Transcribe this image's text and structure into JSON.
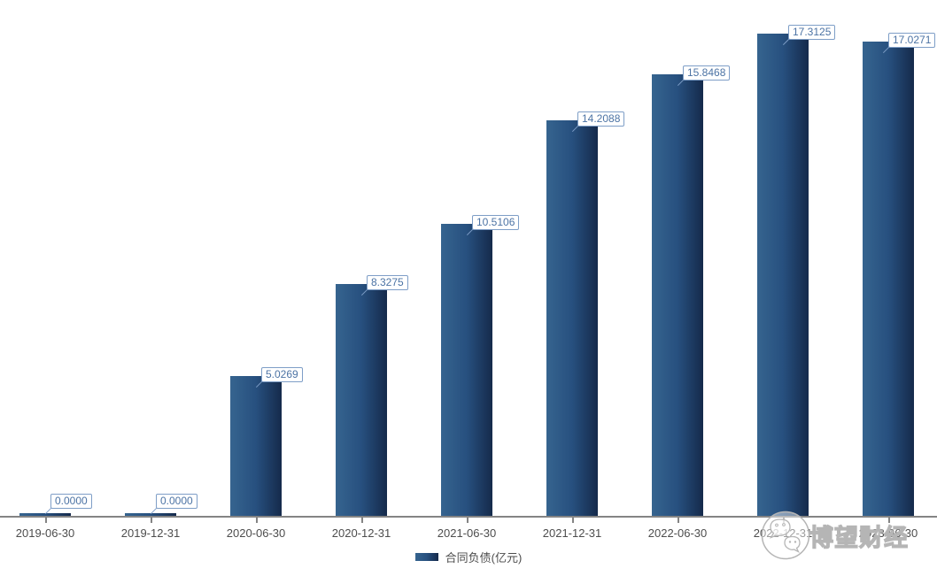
{
  "chart_data": {
    "type": "bar",
    "title": "",
    "categories": [
      "2019-06-30",
      "2019-12-31",
      "2020-06-30",
      "2020-12-31",
      "2021-06-30",
      "2021-12-31",
      "2022-06-30",
      "2022-12-31",
      "2023-06-30"
    ],
    "series": [
      {
        "name": "合同负债(亿元)",
        "values": [
          0.0,
          0.0,
          5.0269,
          8.3275,
          10.5106,
          14.2088,
          15.8468,
          17.3125,
          17.0271
        ],
        "labels": [
          "0.0000",
          "0.0000",
          "5.0269",
          "8.3275",
          "10.5106",
          "14.2088",
          "15.8468",
          "17.3125",
          "17.0271"
        ]
      }
    ],
    "ylim": [
      0,
      18.5
    ],
    "grid": false,
    "y_axis_visible": false,
    "legend_position": "bottom"
  },
  "watermark": {
    "text": "博望财经",
    "icon": "wechat-icon"
  },
  "colors": {
    "bar_gradient_left": "#36648f",
    "bar_gradient_mid": "#27507f",
    "bar_gradient_right": "#152a4b",
    "label_border": "#7e9ec7",
    "label_text": "#4c73a4",
    "axis": "#848484",
    "tick_label": "#4d4d4d",
    "legend_text": "#4d4d4d",
    "watermark_gray": "#b5b5b5",
    "background": "#ffffff"
  }
}
